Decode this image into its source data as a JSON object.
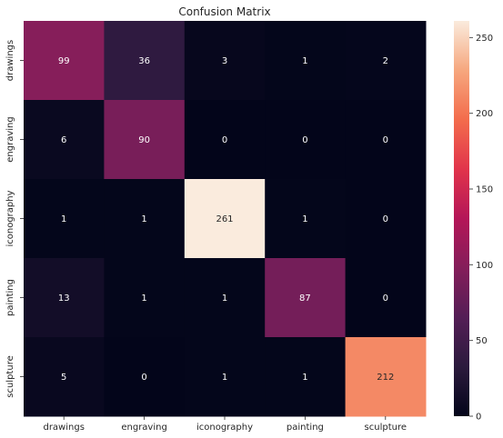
{
  "chart_data": {
    "type": "heatmap",
    "title": "Confusion Matrix",
    "xlabel": "",
    "ylabel": "",
    "x_categories": [
      "drawings",
      "engraving",
      "iconography",
      "painting",
      "sculpture"
    ],
    "y_categories": [
      "drawings",
      "engraving",
      "iconography",
      "painting",
      "sculpture"
    ],
    "values": [
      [
        99,
        36,
        3,
        1,
        2
      ],
      [
        6,
        90,
        0,
        0,
        0
      ],
      [
        1,
        1,
        261,
        1,
        0
      ],
      [
        13,
        1,
        1,
        87,
        0
      ],
      [
        5,
        0,
        1,
        1,
        212
      ]
    ],
    "colorbar": {
      "min": 0,
      "max": 261,
      "ticks": [
        0,
        50,
        100,
        150,
        200,
        250
      ],
      "colormap": "rocket"
    },
    "annotation_colors": {
      "on_dark": "#ffffff",
      "on_light": "#262626"
    }
  }
}
